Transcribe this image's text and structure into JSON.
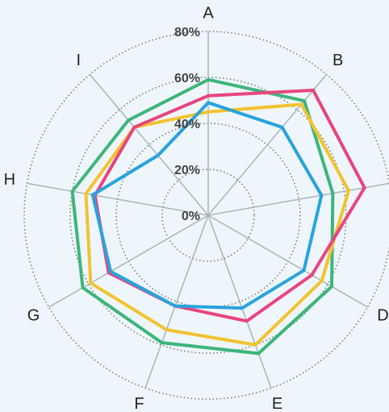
{
  "chart_data": {
    "type": "radar",
    "categories": [
      "A",
      "B",
      null,
      "D",
      "E",
      "F",
      "G",
      "H",
      "I"
    ],
    "rlim": [
      0,
      80
    ],
    "rticks": [
      {
        "value": 0,
        "label": "0%"
      },
      {
        "value": 20,
        "label": "20%"
      },
      {
        "value": 40,
        "label": "40%"
      },
      {
        "value": 60,
        "label": "60%"
      },
      {
        "value": 80,
        "label": "80%"
      }
    ],
    "grid": true,
    "series": [
      {
        "color": "#3db57a",
        "values": [
          59,
          65,
          55,
          62,
          64,
          59,
          63,
          60,
          54
        ]
      },
      {
        "color": "#f2c330",
        "values": [
          45,
          63,
          62,
          57,
          60,
          53,
          59,
          54,
          50
        ]
      },
      {
        "color": "#e8457f",
        "values": [
          52,
          71,
          69,
          52,
          49,
          42,
          50,
          50,
          50
        ]
      },
      {
        "color": "#29a3dc",
        "values": [
          49,
          50,
          50,
          48,
          43,
          42,
          49,
          51,
          34
        ]
      }
    ]
  }
}
